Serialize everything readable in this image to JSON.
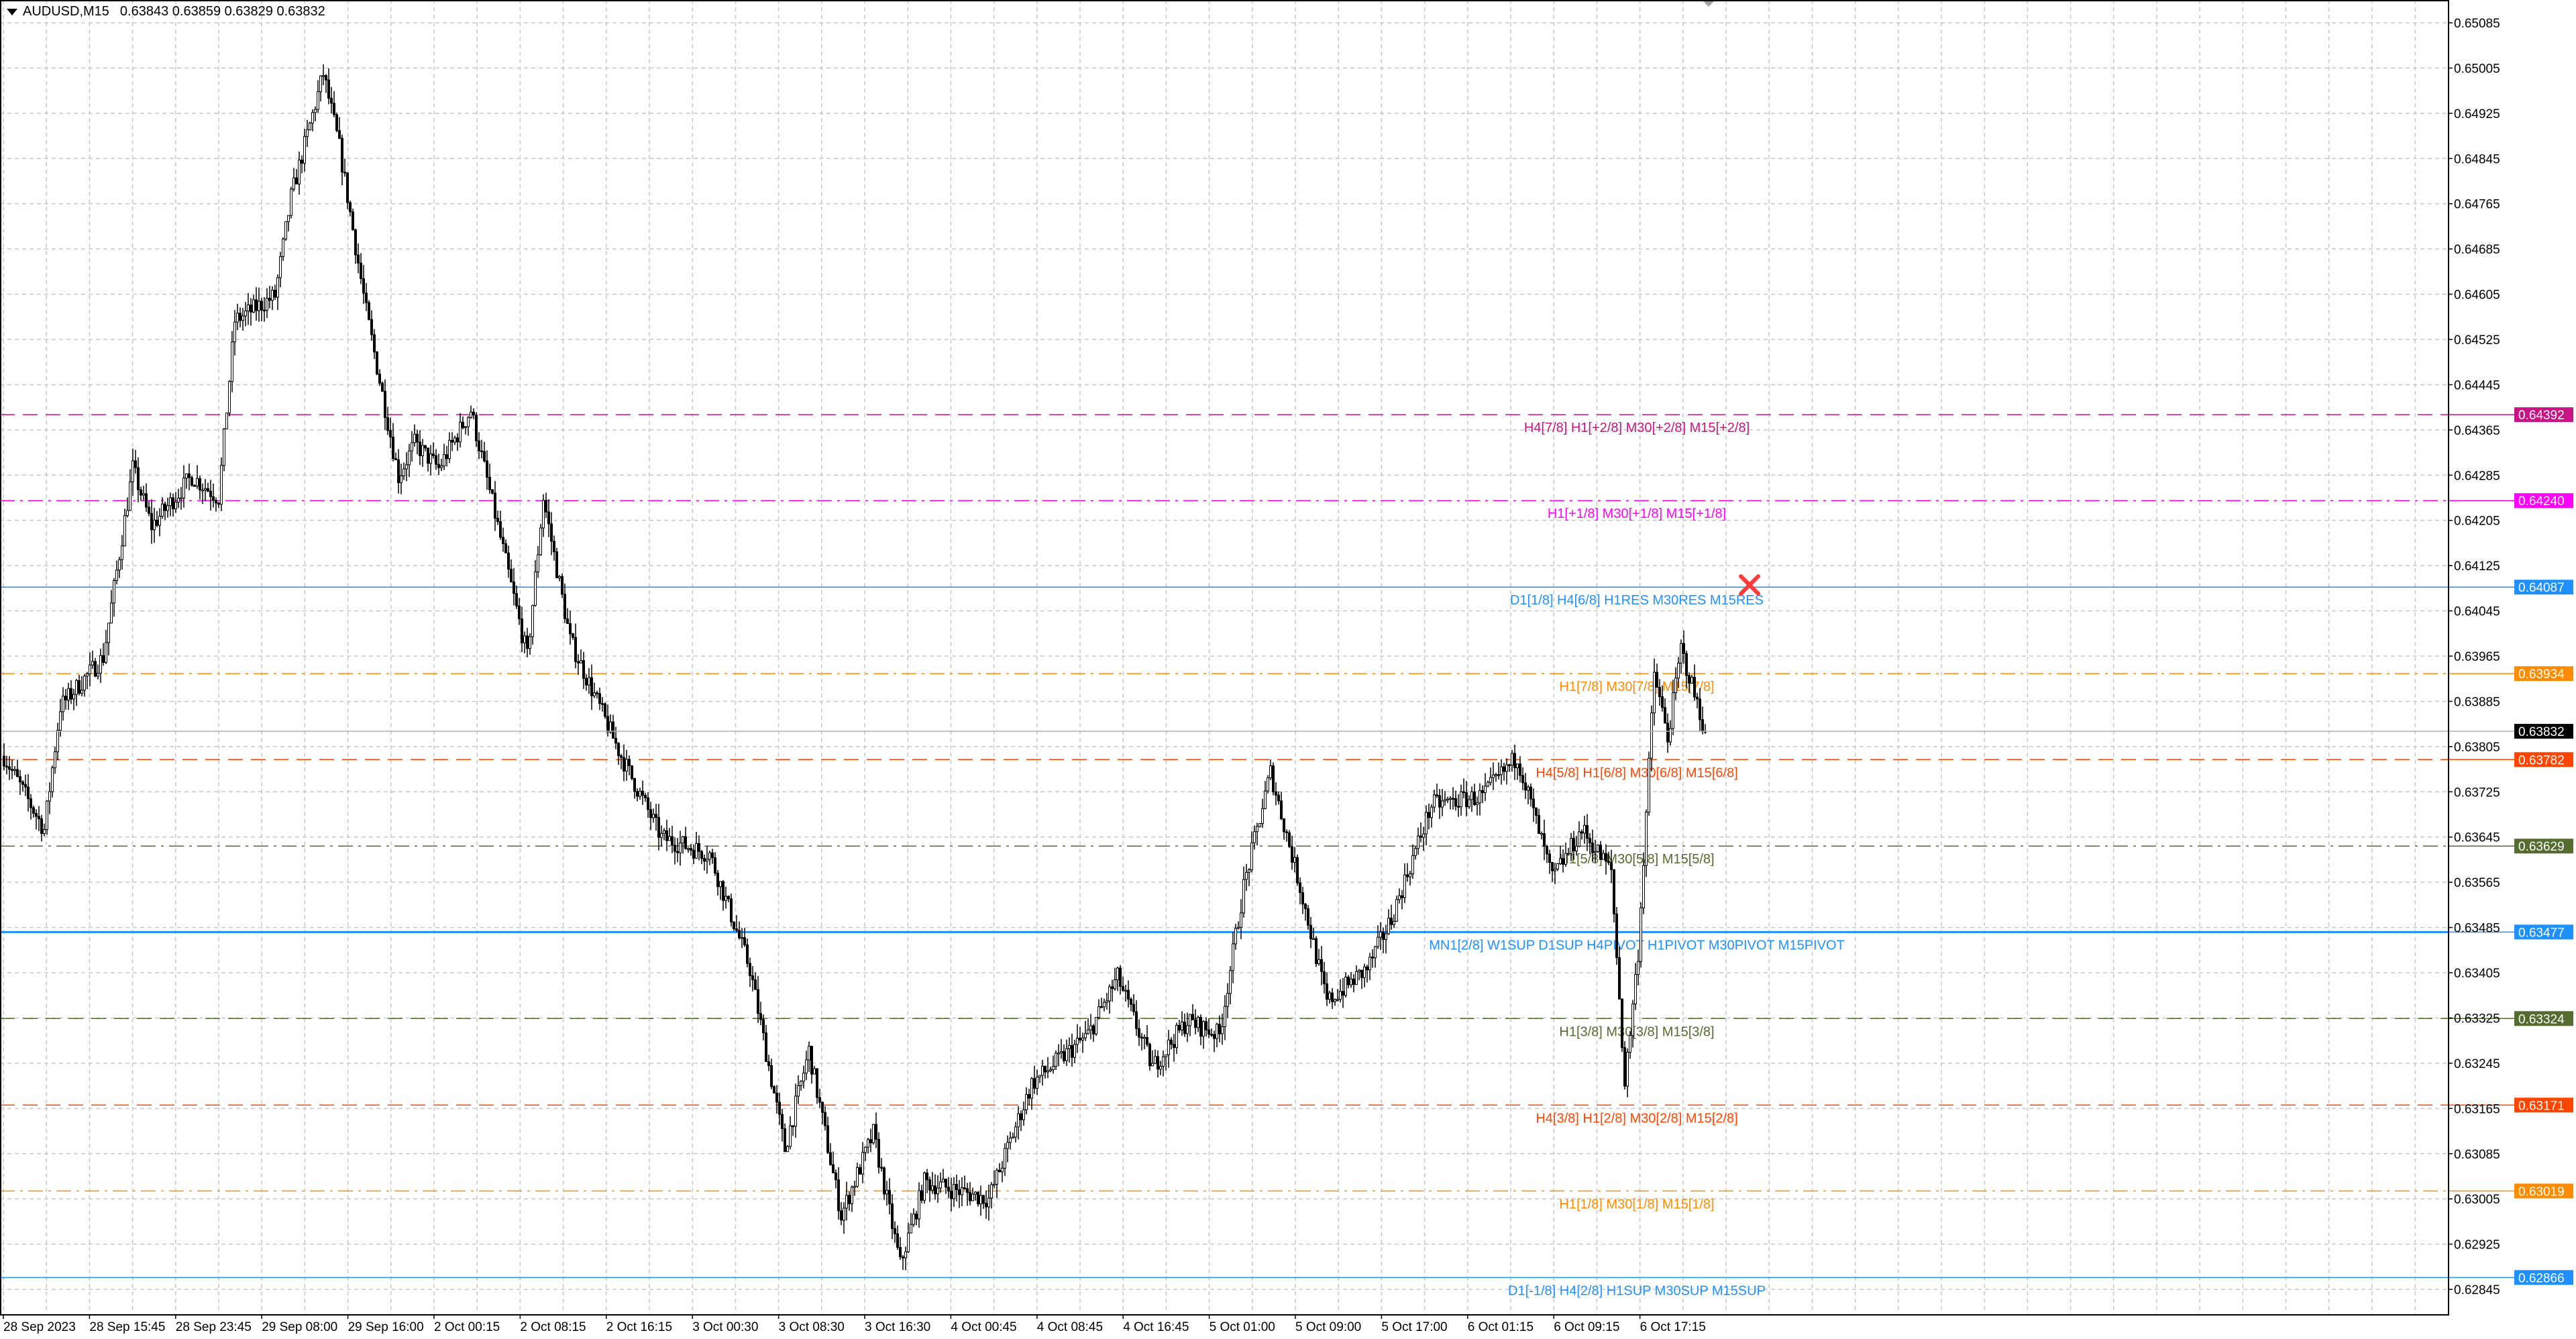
{
  "header": {
    "symbol": "AUDUSD,M15",
    "ohlc": "0.63843 0.63859 0.63829 0.63832"
  },
  "price_axis": {
    "ticks": [
      "0.65085",
      "0.65005",
      "0.64925",
      "0.64845",
      "0.64765",
      "0.64685",
      "0.64605",
      "0.64525",
      "0.64445",
      "0.64365",
      "0.64285",
      "0.64205",
      "0.64125",
      "0.64045",
      "0.63965",
      "0.63885",
      "0.63805",
      "0.63725",
      "0.63645",
      "0.63565",
      "0.63485",
      "0.63405",
      "0.63325",
      "0.63245",
      "0.63165",
      "0.63085",
      "0.63005",
      "0.62925",
      "0.62845"
    ],
    "range": [
      0.628,
      0.65125
    ]
  },
  "time_axis": {
    "labels": [
      "28 Sep 2023",
      "28 Sep 15:45",
      "28 Sep 23:45",
      "29 Sep 08:00",
      "29 Sep 16:00",
      "2 Oct 00:15",
      "2 Oct 08:15",
      "2 Oct 16:15",
      "3 Oct 00:30",
      "3 Oct 08:30",
      "3 Oct 16:30",
      "4 Oct 00:45",
      "4 Oct 08:45",
      "4 Oct 16:45",
      "5 Oct 01:00",
      "5 Oct 09:00",
      "5 Oct 17:00",
      "6 Oct 01:15",
      "6 Oct 09:15",
      "6 Oct 17:15"
    ]
  },
  "current_price": {
    "value": "0.63832",
    "color": "#000000"
  },
  "levels": [
    {
      "price": "0.64392",
      "label": "H4[7/8] H1[+2/8] M30[+2/8] M15[+2/8]",
      "color": "#C71585",
      "style": "dash"
    },
    {
      "price": "0.64240",
      "label": "H1[+1/8] M30[+1/8] M15[+1/8]",
      "color": "#FF00FF",
      "style": "dashdot"
    },
    {
      "price": "0.64087",
      "label": "D1[1/8] H4[6/8] H1RES M30RES M15RES",
      "color": "#1E90FF",
      "style": "solid"
    },
    {
      "price": "0.63934",
      "label": "H1[7/8] M30[7/8] M15[7/8]",
      "color": "#FF8C00",
      "style": "dashdot"
    },
    {
      "price": "0.63782",
      "label": "H4[5/8] H1[6/8] M30[6/8] M15[6/8]",
      "color": "#FF4500",
      "style": "dash"
    },
    {
      "price": "0.63629",
      "label": "H1[5/8] M30[5/8] M15[5/8]",
      "color": "#556B2F",
      "style": "dashdot"
    },
    {
      "price": "0.63477",
      "label": "MN1[2/8] W1SUP D1SUP H4PIVOT H1PIVOT M30PIVOT M15PIVOT",
      "color": "#1E90FF",
      "style": "solid-bold"
    },
    {
      "price": "0.63324",
      "label": "H1[3/8] M30[3/8] M15[3/8]",
      "color": "#556B2F",
      "style": "dash"
    },
    {
      "price": "0.63171",
      "label": "H4[3/8] H1[2/8] M30[2/8] M15[2/8]",
      "color": "#FF4500",
      "style": "dash"
    },
    {
      "price": "0.63019",
      "label": "H1[1/8] M30[1/8] M15[1/8]",
      "color": "#FF8C00",
      "style": "dashdot"
    },
    {
      "price": "0.62866",
      "label": "D1[-1/8] H4[2/8] H1SUP M30SUP M15SUP",
      "color": "#1E90FF",
      "style": "solid"
    }
  ],
  "price_path": [
    [
      0,
      0.63788
    ],
    [
      15,
      0.63658
    ],
    [
      21,
      0.63876
    ],
    [
      37,
      0.63963
    ],
    [
      48,
      0.64297
    ],
    [
      55,
      0.64195
    ],
    [
      70,
      0.64283
    ],
    [
      80,
      0.64245
    ],
    [
      86,
      0.64558
    ],
    [
      101,
      0.64602
    ],
    [
      107,
      0.64777
    ],
    [
      119,
      0.64995
    ],
    [
      125,
      0.64865
    ],
    [
      135,
      0.64574
    ],
    [
      147,
      0.64283
    ],
    [
      153,
      0.64341
    ],
    [
      162,
      0.64297
    ],
    [
      174,
      0.644
    ],
    [
      184,
      0.64195
    ],
    [
      195,
      0.63963
    ],
    [
      201,
      0.64245
    ],
    [
      211,
      0.63993
    ],
    [
      230,
      0.63788
    ],
    [
      245,
      0.63644
    ],
    [
      263,
      0.63615
    ],
    [
      278,
      0.63412
    ],
    [
      291,
      0.63093
    ],
    [
      300,
      0.63267
    ],
    [
      312,
      0.62976
    ],
    [
      324,
      0.63121
    ],
    [
      334,
      0.62889
    ],
    [
      343,
      0.63035
    ],
    [
      367,
      0.63005
    ],
    [
      383,
      0.63209
    ],
    [
      404,
      0.63295
    ],
    [
      415,
      0.63397
    ],
    [
      428,
      0.63238
    ],
    [
      441,
      0.6332
    ],
    [
      453,
      0.63295
    ],
    [
      462,
      0.63557
    ],
    [
      472,
      0.6376
    ],
    [
      483,
      0.63557
    ],
    [
      493,
      0.63353
    ],
    [
      508,
      0.63412
    ],
    [
      517,
      0.635
    ],
    [
      532,
      0.63702
    ],
    [
      551,
      0.63717
    ],
    [
      564,
      0.63788
    ],
    [
      577,
      0.63571
    ],
    [
      588,
      0.63658
    ],
    [
      599,
      0.63585
    ],
    [
      604,
      0.63209
    ],
    [
      609,
      0.63441
    ],
    [
      615,
      0.63935
    ],
    [
      620,
      0.6382
    ],
    [
      625,
      0.63978
    ],
    [
      634,
      0.63832
    ]
  ],
  "colors": {
    "grid": "#C8C8C8",
    "candle": "#000000",
    "background": "#FFFFFF",
    "marker": "#FF3B3B"
  },
  "icons": {
    "header_toggle": "triangle-down-icon",
    "marker": "x-mark-icon",
    "shift_marker": "triangle-down-icon"
  }
}
